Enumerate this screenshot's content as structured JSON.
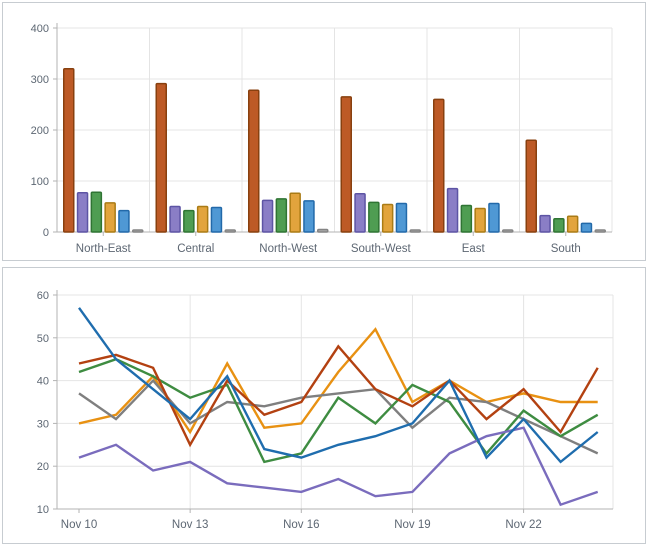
{
  "page": {
    "background_color": "#ffffff",
    "panel_border_color": "#c7ccd1",
    "gridline_color": "#e4e4e4",
    "axis_color": "#b3b3b3",
    "label_color": "#5d6773"
  },
  "chart_data": [
    {
      "type": "bar",
      "title": "",
      "xlabel": "",
      "ylabel": "",
      "ylim": [
        0,
        400
      ],
      "y_ticks": [
        "0",
        "100",
        "200",
        "300",
        "400"
      ],
      "grid": true,
      "legend_position": "none",
      "categories": [
        "North-East",
        "Central",
        "North-West",
        "South-West",
        "East",
        "South"
      ],
      "series": [
        {
          "name": "rust",
          "fill": "#bd5a26",
          "border": "#88400f",
          "values": [
            320,
            291,
            278,
            265,
            260,
            180
          ]
        },
        {
          "name": "purple",
          "fill": "#8a7ec6",
          "border": "#5d54a4",
          "values": [
            77,
            50,
            62,
            75,
            85,
            32
          ]
        },
        {
          "name": "green",
          "fill": "#4f9d52",
          "border": "#2f7433",
          "values": [
            78,
            42,
            65,
            58,
            52,
            26
          ]
        },
        {
          "name": "orange",
          "fill": "#e2a43d",
          "border": "#aa7b15",
          "values": [
            57,
            50,
            76,
            54,
            46,
            31
          ]
        },
        {
          "name": "blue",
          "fill": "#4f98d4",
          "border": "#2269a9",
          "values": [
            42,
            48,
            61,
            56,
            56,
            17
          ]
        },
        {
          "name": "gray",
          "fill": "#ababab",
          "border": "#848484",
          "values": [
            4,
            2,
            5,
            4,
            3,
            2
          ]
        }
      ]
    },
    {
      "type": "line",
      "title": "",
      "xlabel": "",
      "ylabel": "",
      "ylim": [
        10,
        60
      ],
      "y_ticks": [
        "10",
        "20",
        "30",
        "40",
        "50",
        "60"
      ],
      "grid": true,
      "legend_position": "none",
      "x": [
        "Nov 10",
        "Nov 11",
        "Nov 12",
        "Nov 13",
        "Nov 14",
        "Nov 15",
        "Nov 16",
        "Nov 17",
        "Nov 18",
        "Nov 19",
        "Nov 20",
        "Nov 21",
        "Nov 22",
        "Nov 23",
        "Nov 24"
      ],
      "x_tick_labels": [
        "Nov 10",
        "Nov 13",
        "Nov 16",
        "Nov 19",
        "Nov 22"
      ],
      "x_tick_indices": [
        0,
        3,
        6,
        9,
        12
      ],
      "series": [
        {
          "name": "orange",
          "color": "#e89112",
          "values": [
            30,
            32,
            41,
            28,
            44,
            29,
            30,
            42,
            52,
            35,
            40,
            35,
            37,
            35,
            35
          ]
        },
        {
          "name": "gray",
          "color": "#7f7f7f",
          "values": [
            37,
            31,
            40,
            30,
            35,
            34,
            36,
            37,
            38,
            29,
            36,
            35,
            31,
            27,
            23
          ]
        },
        {
          "name": "green",
          "color": "#3e8c41",
          "values": [
            42,
            45,
            41,
            36,
            39,
            21,
            23,
            36,
            30,
            39,
            35,
            23,
            33,
            27,
            32
          ]
        },
        {
          "name": "red",
          "color": "#b34111",
          "values": [
            44,
            46,
            43,
            25,
            40,
            32,
            35,
            48,
            38,
            34,
            40,
            31,
            38,
            28,
            43
          ]
        },
        {
          "name": "purple",
          "color": "#7a6cbd",
          "values": [
            22,
            25,
            19,
            21,
            16,
            15,
            14,
            17,
            13,
            14,
            23,
            27,
            29,
            11,
            14
          ]
        },
        {
          "name": "blue",
          "color": "#1f6dae",
          "values": [
            57,
            45,
            38,
            31,
            41,
            24,
            22,
            25,
            27,
            30,
            40,
            22,
            31,
            21,
            28
          ]
        }
      ]
    }
  ]
}
